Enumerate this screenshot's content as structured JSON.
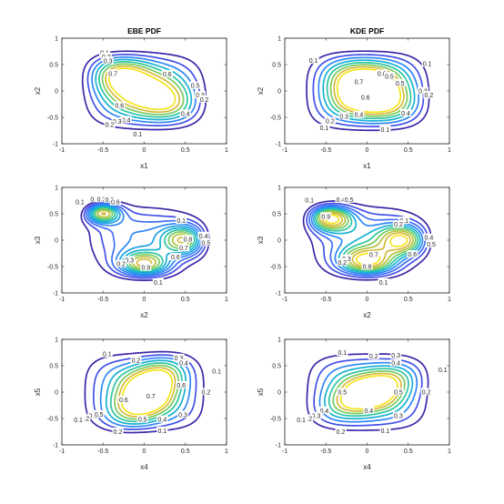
{
  "chart_data": [
    {
      "type": "contour",
      "title": "EBE PDF",
      "xlabel": "x1",
      "ylabel": "x2",
      "xlim": [
        -1,
        1
      ],
      "ylim": [
        -1,
        1
      ],
      "xticks": [
        "-1",
        "-0.5",
        "0",
        "0.5",
        "1"
      ],
      "yticks": [
        "-1",
        "-0.5",
        "0",
        "0.5",
        "1"
      ],
      "levels": [
        0.1,
        0.2,
        0.3,
        0.4,
        0.5,
        0.6,
        0.7,
        0.8
      ],
      "colors": [
        "#3e26a8",
        "#4350e6",
        "#2e87f7",
        "#17b1d2",
        "#2dc6a0",
        "#79cb5f",
        "#d4ba3a",
        "#f5e31c"
      ],
      "peaks": [
        {
          "x": -0.3,
          "y": 0.3,
          "a": 0.55,
          "sx": 0.28,
          "sy": 0.3
        },
        {
          "x": 0.25,
          "y": -0.2,
          "a": 0.45,
          "sx": 0.33,
          "sy": 0.3
        },
        {
          "x": 0.0,
          "y": 0.0,
          "a": 0.35,
          "sx": 0.7,
          "sy": 0.7
        }
      ],
      "labels": [
        {
          "text": "0.1",
          "x": -0.48,
          "y": 0.72
        },
        {
          "text": "0.2",
          "x": -0.46,
          "y": 0.65
        },
        {
          "text": "0.3",
          "x": -0.44,
          "y": 0.57
        },
        {
          "text": "0.7",
          "x": -0.38,
          "y": 0.33
        },
        {
          "text": "0.6",
          "x": 0.28,
          "y": 0.32
        },
        {
          "text": "0.6",
          "x": -0.3,
          "y": -0.28
        },
        {
          "text": "0.5",
          "x": 0.62,
          "y": 0.1
        },
        {
          "text": "0.3",
          "x": 0.68,
          "y": -0.08
        },
        {
          "text": "0.2",
          "x": 0.73,
          "y": -0.16
        },
        {
          "text": "0.4",
          "x": 0.5,
          "y": -0.43
        },
        {
          "text": "0.4",
          "x": -0.22,
          "y": -0.55
        },
        {
          "text": "0.3",
          "x": -0.33,
          "y": -0.58
        },
        {
          "text": "0.2",
          "x": -0.42,
          "y": -0.64
        },
        {
          "text": "0.1",
          "x": -0.08,
          "y": -0.82
        }
      ]
    },
    {
      "type": "contour",
      "title": "KDE PDF",
      "xlabel": "x1",
      "ylabel": "x2",
      "xlim": [
        -1,
        1
      ],
      "ylim": [
        -1,
        1
      ],
      "xticks": [
        "-1",
        "-0.5",
        "0",
        "0.5",
        "1"
      ],
      "yticks": [
        "-1",
        "-0.5",
        "0",
        "0.5",
        "1"
      ],
      "levels": [
        0.1,
        0.2,
        0.3,
        0.4,
        0.5,
        0.6,
        0.7,
        0.8
      ],
      "colors": [
        "#3e26a8",
        "#4350e6",
        "#2e87f7",
        "#17b1d2",
        "#2dc6a0",
        "#79cb5f",
        "#d4ba3a",
        "#f5e31c"
      ],
      "peaks": [
        {
          "x": -0.05,
          "y": 0.15,
          "a": 0.5,
          "sx": 0.3,
          "sy": 0.35
        },
        {
          "x": 0.2,
          "y": -0.2,
          "a": 0.35,
          "sx": 0.35,
          "sy": 0.3
        },
        {
          "x": 0.0,
          "y": 0.0,
          "a": 0.4,
          "sx": 0.75,
          "sy": 0.75
        }
      ],
      "labels": [
        {
          "text": "0.1",
          "x": -0.65,
          "y": 0.58
        },
        {
          "text": "0.1",
          "x": 0.73,
          "y": 0.52
        },
        {
          "text": "0.6",
          "x": 0.18,
          "y": 0.33
        },
        {
          "text": "0.5",
          "x": 0.27,
          "y": 0.28
        },
        {
          "text": "0.5",
          "x": 0.4,
          "y": 0.15
        },
        {
          "text": "0.7",
          "x": -0.1,
          "y": 0.17
        },
        {
          "text": "0.6",
          "x": -0.02,
          "y": -0.12
        },
        {
          "text": "0.3",
          "x": 0.68,
          "y": 0.0
        },
        {
          "text": "0.2",
          "x": 0.75,
          "y": -0.08
        },
        {
          "text": "0.4",
          "x": -0.1,
          "y": -0.45
        },
        {
          "text": "0.3",
          "x": -0.28,
          "y": -0.48
        },
        {
          "text": "0.4",
          "x": 0.47,
          "y": -0.42
        },
        {
          "text": "0.2",
          "x": -0.45,
          "y": -0.57
        },
        {
          "text": "0.1",
          "x": -0.52,
          "y": -0.7
        },
        {
          "text": "0.1",
          "x": 0.22,
          "y": -0.73
        }
      ]
    },
    {
      "type": "contour",
      "title": "",
      "xlabel": "x2",
      "ylabel": "x3",
      "xlim": [
        -1,
        1
      ],
      "ylim": [
        -1,
        1
      ],
      "xticks": [
        "-1",
        "-0.5",
        "0",
        "0.5",
        "1"
      ],
      "yticks": [
        "-1",
        "-0.5",
        "0",
        "0.5",
        "1"
      ],
      "levels": [
        0.1,
        0.2,
        0.3,
        0.4,
        0.5,
        0.6,
        0.7,
        0.8,
        0.9,
        1.0,
        1.1,
        1.2
      ],
      "colors": [
        "#3e26a8",
        "#4350e6",
        "#3f6ff8",
        "#2e87f7",
        "#1da0e0",
        "#17b1d2",
        "#2dc6a0",
        "#79cb5f",
        "#b3c33e",
        "#d4ba3a",
        "#f0c52f",
        "#f5e31c"
      ],
      "peaks": [
        {
          "x": -0.55,
          "y": 0.55,
          "a": 1.4,
          "sx": 0.16,
          "sy": 0.14
        },
        {
          "x": 0.55,
          "y": 0.0,
          "a": 0.95,
          "sx": 0.2,
          "sy": 0.2
        },
        {
          "x": 0.0,
          "y": -0.5,
          "a": 0.95,
          "sx": 0.22,
          "sy": 0.18
        },
        {
          "x": -0.1,
          "y": 0.1,
          "a": 0.3,
          "sx": 0.55,
          "sy": 0.45
        }
      ],
      "labels": [
        {
          "text": "0.1",
          "x": -0.78,
          "y": 0.72
        },
        {
          "text": "0.2",
          "x": -0.6,
          "y": 0.78
        },
        {
          "text": "0.3",
          "x": -0.52,
          "y": 0.78
        },
        {
          "text": "0.5",
          "x": -0.42,
          "y": 0.77
        },
        {
          "text": "0.6",
          "x": -0.35,
          "y": 0.72
        },
        {
          "text": "0.1",
          "x": 0.45,
          "y": 0.37
        },
        {
          "text": "0.8",
          "x": 0.53,
          "y": 0.02
        },
        {
          "text": "0.4",
          "x": 0.72,
          "y": 0.08
        },
        {
          "text": "0.5",
          "x": 0.75,
          "y": -0.05
        },
        {
          "text": "0.7",
          "x": 0.48,
          "y": -0.15
        },
        {
          "text": "0.6",
          "x": 0.38,
          "y": -0.32
        },
        {
          "text": "0.9",
          "x": 0.02,
          "y": -0.52
        },
        {
          "text": "0.3",
          "x": -0.18,
          "y": -0.38
        },
        {
          "text": "0.2",
          "x": -0.28,
          "y": -0.45
        },
        {
          "text": "0.1",
          "x": 0.17,
          "y": -0.8
        }
      ]
    },
    {
      "type": "contour",
      "title": "",
      "xlabel": "x2",
      "ylabel": "x3",
      "xlim": [
        -1,
        1
      ],
      "ylim": [
        -1,
        1
      ],
      "xticks": [
        "-1",
        "-0.5",
        "0",
        "0.5",
        "1"
      ],
      "yticks": [
        "-1",
        "-0.5",
        "0",
        "0.5",
        "1"
      ],
      "levels": [
        0.1,
        0.2,
        0.3,
        0.4,
        0.5,
        0.6,
        0.7,
        0.8,
        0.9,
        1.0
      ],
      "colors": [
        "#3e26a8",
        "#4350e6",
        "#3f6ff8",
        "#2e87f7",
        "#17b1d2",
        "#2dc6a0",
        "#79cb5f",
        "#b3c33e",
        "#d4ba3a",
        "#f5e31c"
      ],
      "peaks": [
        {
          "x": -0.5,
          "y": 0.45,
          "a": 1.1,
          "sx": 0.2,
          "sy": 0.18
        },
        {
          "x": 0.5,
          "y": 0.0,
          "a": 0.85,
          "sx": 0.22,
          "sy": 0.2
        },
        {
          "x": 0.0,
          "y": -0.45,
          "a": 0.85,
          "sx": 0.24,
          "sy": 0.2
        },
        {
          "x": -0.05,
          "y": 0.05,
          "a": 0.3,
          "sx": 0.6,
          "sy": 0.5
        }
      ],
      "labels": [
        {
          "text": "0.1",
          "x": -0.7,
          "y": 0.76
        },
        {
          "text": "0.4",
          "x": -0.32,
          "y": 0.77
        },
        {
          "text": "0.5",
          "x": -0.22,
          "y": 0.77
        },
        {
          "text": "0.9",
          "x": -0.5,
          "y": 0.45
        },
        {
          "text": "0.1",
          "x": 0.45,
          "y": 0.37
        },
        {
          "text": "0.2",
          "x": 0.38,
          "y": 0.3
        },
        {
          "text": "0.7",
          "x": 0.08,
          "y": -0.28
        },
        {
          "text": "0.6",
          "x": 0.55,
          "y": -0.27
        },
        {
          "text": "0.4",
          "x": 0.75,
          "y": 0.05
        },
        {
          "text": "0.5",
          "x": 0.78,
          "y": -0.08
        },
        {
          "text": "0.8",
          "x": 0.0,
          "y": -0.5
        },
        {
          "text": "0.3",
          "x": -0.25,
          "y": -0.35
        },
        {
          "text": "0.2",
          "x": -0.3,
          "y": -0.42
        },
        {
          "text": "0.1",
          "x": 0.2,
          "y": -0.8
        }
      ]
    },
    {
      "type": "contour",
      "title": "",
      "xlabel": "x4",
      "ylabel": "x5",
      "xlim": [
        -1,
        1
      ],
      "ylim": [
        -1,
        1
      ],
      "xticks": [
        "-1",
        "-0.5",
        "0",
        "0.5",
        "1"
      ],
      "yticks": [
        "-1",
        "-0.5",
        "0",
        "0.5",
        "1"
      ],
      "levels": [
        0.1,
        0.2,
        0.3,
        0.4,
        0.5,
        0.6,
        0.7,
        0.8
      ],
      "colors": [
        "#3e26a8",
        "#4350e6",
        "#2e87f7",
        "#17b1d2",
        "#2dc6a0",
        "#79cb5f",
        "#d4ba3a",
        "#f5e31c"
      ],
      "peaks": [
        {
          "x": 0.05,
          "y": 0.0,
          "a": 0.6,
          "sx": 0.28,
          "sy": 0.5,
          "rho": 0.55
        },
        {
          "x": 0.0,
          "y": 0.0,
          "a": 0.4,
          "sx": 0.75,
          "sy": 0.75
        }
      ],
      "labels": [
        {
          "text": "0.1",
          "x": -0.45,
          "y": 0.72
        },
        {
          "text": "0.2",
          "x": -0.1,
          "y": 0.6
        },
        {
          "text": "0.3",
          "x": 0.42,
          "y": 0.65
        },
        {
          "text": "0.4",
          "x": 0.48,
          "y": 0.55
        },
        {
          "text": "0.1",
          "x": 0.88,
          "y": 0.4
        },
        {
          "text": "0.6",
          "x": -0.25,
          "y": -0.15
        },
        {
          "text": "0.7",
          "x": 0.08,
          "y": -0.08
        },
        {
          "text": "0.6",
          "x": 0.45,
          "y": 0.13
        },
        {
          "text": "0.2",
          "x": 0.75,
          "y": 0.0
        },
        {
          "text": "0.5",
          "x": -0.02,
          "y": -0.52
        },
        {
          "text": "0.4",
          "x": 0.22,
          "y": -0.52
        },
        {
          "text": "0.3",
          "x": 0.47,
          "y": -0.43
        },
        {
          "text": "0.3",
          "x": -0.62,
          "y": -0.45
        },
        {
          "text": "0.2",
          "x": -0.72,
          "y": -0.5
        },
        {
          "text": "0.5",
          "x": -0.55,
          "y": -0.42
        },
        {
          "text": "0.1",
          "x": -0.8,
          "y": -0.53
        },
        {
          "text": "0.2",
          "x": -0.32,
          "y": -0.75
        },
        {
          "text": "0.1",
          "x": 0.22,
          "y": -0.73
        }
      ]
    },
    {
      "type": "contour",
      "title": "",
      "xlabel": "x4",
      "ylabel": "x5",
      "xlim": [
        -1,
        1
      ],
      "ylim": [
        -1,
        1
      ],
      "xticks": [
        "-1",
        "-0.5",
        "0",
        "0.5",
        "1"
      ],
      "yticks": [
        "-1",
        "-0.5",
        "0",
        "0.5",
        "1"
      ],
      "levels": [
        0.1,
        0.2,
        0.3,
        0.4,
        0.5,
        0.6,
        0.7,
        0.8
      ],
      "colors": [
        "#3e26a8",
        "#4350e6",
        "#2e87f7",
        "#17b1d2",
        "#2dc6a0",
        "#79cb5f",
        "#d4ba3a",
        "#f5e31c"
      ],
      "peaks": [
        {
          "x": 0.05,
          "y": 0.0,
          "a": 0.55,
          "sx": 0.35,
          "sy": 0.3,
          "rho": 0.5
        },
        {
          "x": 0.0,
          "y": 0.0,
          "a": 0.4,
          "sx": 0.75,
          "sy": 0.75
        }
      ],
      "labels": [
        {
          "text": "0.1",
          "x": -0.3,
          "y": 0.75
        },
        {
          "text": "0.2",
          "x": 0.08,
          "y": 0.68
        },
        {
          "text": "0.3",
          "x": 0.35,
          "y": 0.7
        },
        {
          "text": "0.4",
          "x": 0.35,
          "y": 0.55
        },
        {
          "text": "0.1",
          "x": 0.92,
          "y": 0.42
        },
        {
          "text": "0.5",
          "x": -0.3,
          "y": 0.0
        },
        {
          "text": "0.5",
          "x": 0.38,
          "y": 0.0
        },
        {
          "text": "0.2",
          "x": 0.72,
          "y": 0.0
        },
        {
          "text": "0.4",
          "x": 0.02,
          "y": -0.35
        },
        {
          "text": "0.3",
          "x": 0.38,
          "y": -0.45
        },
        {
          "text": "0.4",
          "x": -0.52,
          "y": -0.35
        },
        {
          "text": "0.3",
          "x": -0.62,
          "y": -0.45
        },
        {
          "text": "0.2",
          "x": -0.72,
          "y": -0.5
        },
        {
          "text": "0.1",
          "x": -0.8,
          "y": -0.53
        },
        {
          "text": "0.2",
          "x": -0.32,
          "y": -0.75
        },
        {
          "text": "0.1",
          "x": 0.22,
          "y": -0.73
        }
      ]
    }
  ]
}
